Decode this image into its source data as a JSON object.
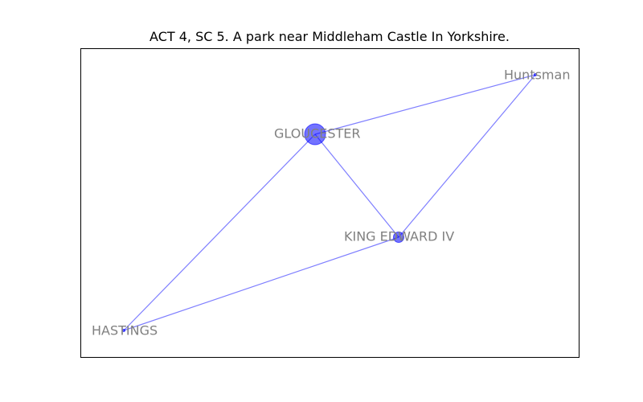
{
  "figure": {
    "title": "ACT 4, SC 5. A park near Middleham Castle In Yorkshire."
  },
  "graph": {
    "node_color": "#0000ff",
    "edge_color": "#0000ff",
    "label_color": "#808080",
    "nodes": [
      {
        "id": "gloucester",
        "label": "GLOUCESTER",
        "size": "large"
      },
      {
        "id": "king-edward-iv",
        "label": "KING EDWARD IV",
        "size": "medium"
      },
      {
        "id": "huntsman",
        "label": "Huntsman",
        "size": "small"
      },
      {
        "id": "hastings",
        "label": "HASTINGS",
        "size": "small"
      }
    ],
    "edges": [
      {
        "source": "gloucester",
        "target": "huntsman"
      },
      {
        "source": "gloucester",
        "target": "king-edward-iv"
      },
      {
        "source": "gloucester",
        "target": "hastings"
      },
      {
        "source": "king-edward-iv",
        "target": "huntsman"
      },
      {
        "source": "king-edward-iv",
        "target": "hastings"
      }
    ]
  }
}
